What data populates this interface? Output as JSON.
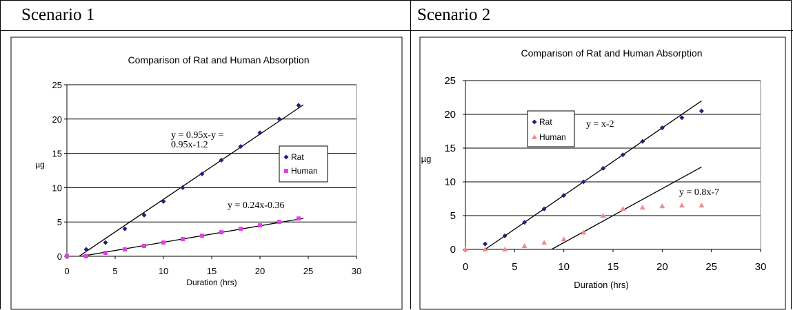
{
  "table": {
    "headers": [
      "Scenario 1",
      "Scenario 2"
    ]
  },
  "chart_data": [
    {
      "type": "scatter",
      "title": "Comparison of Rat and Human Absorption",
      "xlabel": "Duration (hrs)",
      "ylabel": "µg",
      "xlim": [
        0,
        30
      ],
      "ylim": [
        0,
        25
      ],
      "xticks": [
        0,
        5,
        10,
        15,
        20,
        25,
        30
      ],
      "yticks": [
        0,
        5,
        10,
        15,
        20,
        25
      ],
      "grid": "horizontal",
      "legend_position": "right",
      "series": [
        {
          "name": "Rat",
          "marker": "diamond",
          "color": "#1a237e",
          "x": [
            0,
            2,
            4,
            6,
            8,
            10,
            12,
            14,
            16,
            18,
            20,
            22,
            24
          ],
          "y": [
            0,
            1,
            2,
            4,
            6,
            8,
            10,
            12,
            14,
            16,
            18,
            20,
            22
          ],
          "trendline": {
            "slope": 0.95,
            "intercept": -1.2,
            "x_range": [
              1.3,
              24.5
            ]
          }
        },
        {
          "name": "Human",
          "marker": "square",
          "color": "#e040e8",
          "x": [
            0,
            2,
            4,
            6,
            8,
            10,
            12,
            14,
            16,
            18,
            20,
            22,
            24
          ],
          "y": [
            0,
            0,
            0.5,
            1,
            1.5,
            2,
            2.5,
            3,
            3.5,
            4,
            4.5,
            5,
            5.5
          ],
          "trendline": {
            "slope": 0.24,
            "intercept": -0.36,
            "x_range": [
              1.5,
              24.5
            ]
          }
        }
      ],
      "annotations": [
        {
          "lines": [
            "y = 0.95x-y =",
            "0.95x-1.2"
          ]
        },
        {
          "lines": [
            "y = 0.24x-0.36"
          ]
        }
      ]
    },
    {
      "type": "scatter",
      "title": "Comparison of Rat and Human Absorption",
      "xlabel": "Duration (hrs)",
      "ylabel": "µg",
      "xlim": [
        0,
        30
      ],
      "ylim": [
        0,
        25
      ],
      "xticks": [
        0,
        5,
        10,
        15,
        20,
        25,
        30
      ],
      "yticks": [
        0,
        5,
        10,
        15,
        20,
        25
      ],
      "grid": "horizontal",
      "legend_position": "top-left",
      "series": [
        {
          "name": "Rat",
          "marker": "diamond",
          "color": "#1a237e",
          "x": [
            2,
            4,
            6,
            8,
            10,
            12,
            14,
            16,
            18,
            20,
            22,
            24
          ],
          "y": [
            0.8,
            2,
            4,
            6,
            8,
            10,
            12,
            14,
            16,
            18,
            19.5,
            20.5
          ],
          "trendline": {
            "slope": 1,
            "intercept": -2,
            "x_range": [
              2,
              24
            ]
          }
        },
        {
          "name": "Human",
          "marker": "triangle",
          "color": "#f28a8a",
          "x": [
            0,
            2,
            4,
            6,
            8,
            10,
            12,
            14,
            16,
            18,
            20,
            22,
            24
          ],
          "y": [
            0,
            0,
            0,
            0.5,
            1,
            1.5,
            2.5,
            5,
            6,
            6.2,
            6.4,
            6.5,
            6.5
          ],
          "trendline": {
            "slope": 0.8,
            "intercept": -7,
            "x_range": [
              8.75,
              24
            ]
          }
        }
      ],
      "annotations": [
        {
          "lines": [
            "y = x-2"
          ]
        },
        {
          "lines": [
            "y = 0.8x-7"
          ]
        }
      ]
    }
  ]
}
